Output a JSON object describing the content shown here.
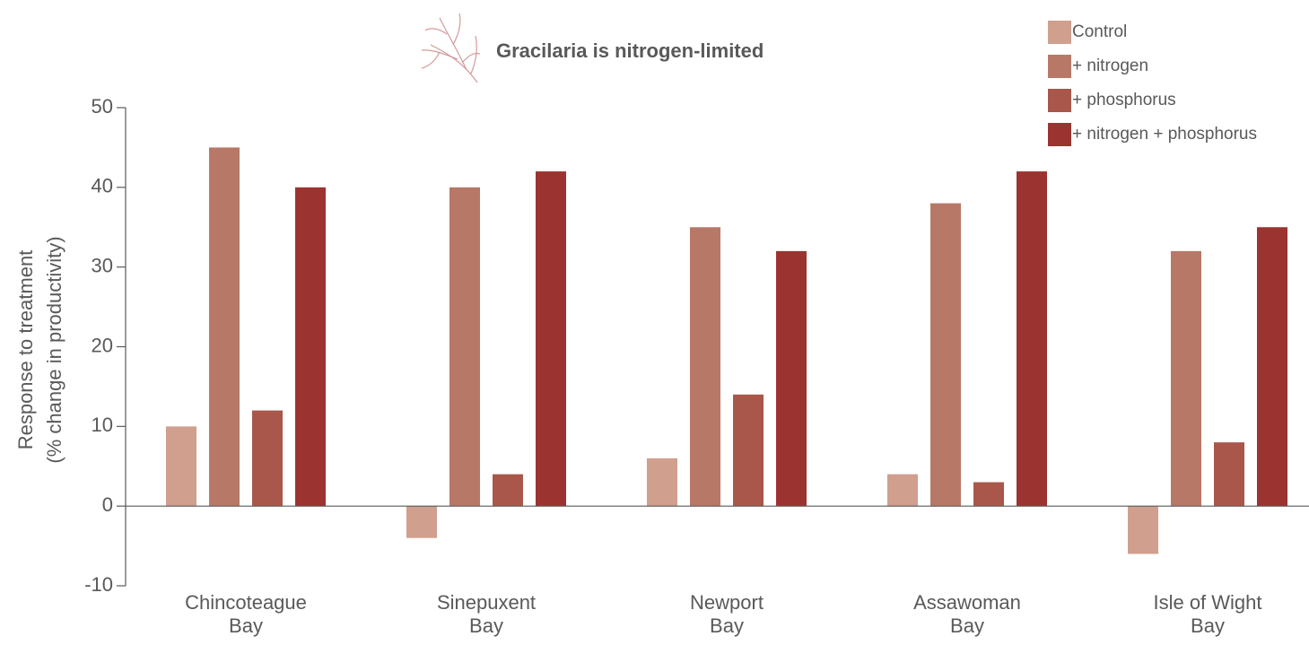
{
  "chart_data": {
    "type": "bar",
    "title": "Gracilaria is nitrogen-limited",
    "y_label": [
      "Response to treatment",
      "(% change in productivity)"
    ],
    "categories": [
      "Chincoteague\nBay",
      "Sinepuxent\nBay",
      "Newport\nBay",
      "Assawoman\nBay",
      "Isle of Wight\nBay"
    ],
    "series": [
      {
        "name": "Control",
        "color": "#d09f8e",
        "values": [
          10,
          -4,
          6,
          4,
          -6
        ]
      },
      {
        "name": "+ nitrogen",
        "color": "#b87868",
        "values": [
          45,
          40,
          35,
          38,
          32
        ]
      },
      {
        "name": "+ phosphorus",
        "color": "#a8574a",
        "values": [
          12,
          4,
          14,
          3,
          8
        ]
      },
      {
        "name": "+ nitrogen + phosphorus",
        "color": "#9b3430",
        "values": [
          40,
          42,
          32,
          42,
          35
        ]
      }
    ],
    "ylim": [
      -10,
      50
    ],
    "yticks": [
      -10,
      0,
      10,
      20,
      30,
      40,
      50
    ],
    "legend": "top-right"
  }
}
